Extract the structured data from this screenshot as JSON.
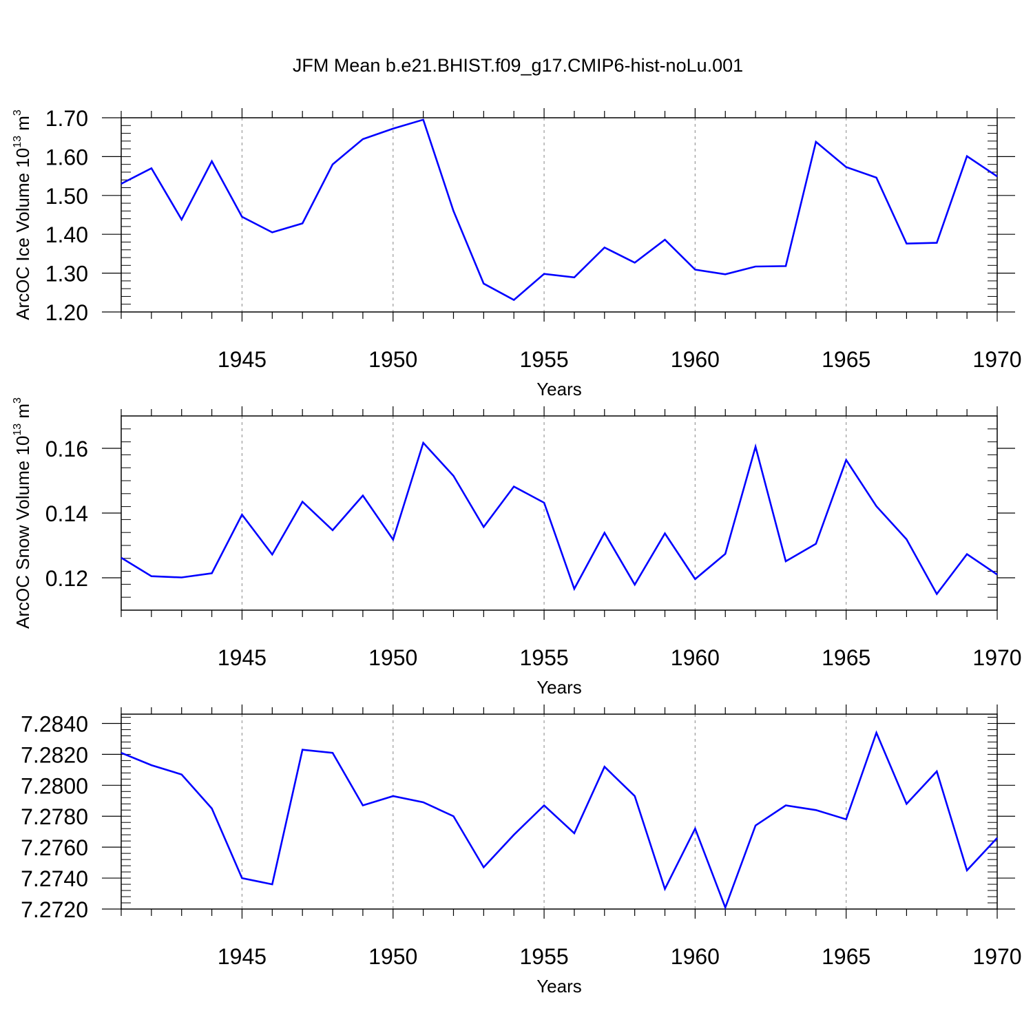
{
  "title": "JFM Mean b.e21.BHIST.f09_g17.CMIP6-hist-noLu.001",
  "colors": {
    "line": "#0000ff",
    "axis": "#000000",
    "grid": "#999999"
  },
  "chart_data": [
    {
      "type": "line",
      "title": "JFM Mean b.e21.BHIST.f09_g17.CMIP6-hist-noLu.001",
      "xlabel": "Years",
      "ylabel": "ArcOC Ice Volume 10^13 m^3",
      "ylabel_main": "ArcOC Ice Volume 10",
      "ylabel_exp": "13",
      "ylabel_unit": " m",
      "ylabel_unit_exp": "3",
      "xlim": [
        1941,
        1970
      ],
      "ylim": [
        1.2,
        1.7
      ],
      "yticks": [
        1.2,
        1.3,
        1.4,
        1.5,
        1.6,
        1.7
      ],
      "ytick_labels": [
        "1.20",
        "1.30",
        "1.40",
        "1.50",
        "1.60",
        "1.70"
      ],
      "xticks": [
        1945,
        1950,
        1955,
        1960,
        1965,
        1970
      ],
      "xtick_labels": [
        "1945",
        "1950",
        "1955",
        "1960",
        "1965",
        "1970"
      ],
      "x": [
        1941,
        1942,
        1943,
        1944,
        1945,
        1946,
        1947,
        1948,
        1949,
        1950,
        1951,
        1952,
        1953,
        1954,
        1955,
        1956,
        1957,
        1958,
        1959,
        1960,
        1961,
        1962,
        1963,
        1964,
        1965,
        1966,
        1967,
        1968,
        1969,
        1970
      ],
      "values": [
        1.53,
        1.57,
        1.438,
        1.588,
        1.445,
        1.405,
        1.428,
        1.58,
        1.645,
        1.672,
        1.695,
        1.46,
        1.273,
        1.231,
        1.298,
        1.289,
        1.366,
        1.327,
        1.386,
        1.309,
        1.297,
        1.317,
        1.318,
        1.638,
        1.573,
        1.546,
        1.376,
        1.378,
        1.601,
        1.549
      ]
    },
    {
      "type": "line",
      "xlabel": "Years",
      "ylabel": "ArcOC Snow Volume 10^13 m^3",
      "ylabel_main": "ArcOC Snow Volume 10",
      "ylabel_exp": "13",
      "ylabel_unit": " m",
      "ylabel_unit_exp": "3",
      "xlim": [
        1941,
        1970
      ],
      "ylim": [
        0.11,
        0.17
      ],
      "yticks": [
        0.12,
        0.14,
        0.16
      ],
      "ytick_labels": [
        "0.12",
        "0.14",
        "0.16"
      ],
      "xticks": [
        1945,
        1950,
        1955,
        1960,
        1965,
        1970
      ],
      "xtick_labels": [
        "1945",
        "1950",
        "1955",
        "1960",
        "1965",
        "1970"
      ],
      "x": [
        1941,
        1942,
        1943,
        1944,
        1945,
        1946,
        1947,
        1948,
        1949,
        1950,
        1951,
        1952,
        1953,
        1954,
        1955,
        1956,
        1957,
        1958,
        1959,
        1960,
        1961,
        1962,
        1963,
        1964,
        1965,
        1966,
        1967,
        1968,
        1969,
        1970
      ],
      "values": [
        0.1262,
        0.1205,
        0.1201,
        0.1214,
        0.1395,
        0.1272,
        0.1435,
        0.1347,
        0.1454,
        0.1318,
        0.1617,
        0.1515,
        0.1357,
        0.1482,
        0.1432,
        0.1166,
        0.1339,
        0.1179,
        0.1337,
        0.1196,
        0.1274,
        0.1605,
        0.1251,
        0.1305,
        0.1564,
        0.1421,
        0.1319,
        0.115,
        0.1273,
        0.121
      ]
    },
    {
      "type": "line",
      "xlabel": "Years",
      "ylabel": "",
      "xlim": [
        1941,
        1970
      ],
      "ylim": [
        7.272,
        7.2846
      ],
      "yticks": [
        7.272,
        7.274,
        7.276,
        7.278,
        7.28,
        7.282,
        7.284
      ],
      "ytick_labels": [
        "7.2720",
        "7.2740",
        "7.2760",
        "7.2780",
        "7.2800",
        "7.2820",
        "7.2840"
      ],
      "xticks": [
        1945,
        1950,
        1955,
        1960,
        1965,
        1970
      ],
      "xtick_labels": [
        "1945",
        "1950",
        "1955",
        "1960",
        "1965",
        "1970"
      ],
      "x": [
        1941,
        1942,
        1943,
        1944,
        1945,
        1946,
        1947,
        1948,
        1949,
        1950,
        1951,
        1952,
        1953,
        1954,
        1955,
        1956,
        1957,
        1958,
        1959,
        1960,
        1961,
        1962,
        1963,
        1964,
        1965,
        1966,
        1967,
        1968,
        1969,
        1970
      ],
      "values": [
        7.2821,
        7.2813,
        7.2807,
        7.2785,
        7.274,
        7.2736,
        7.2823,
        7.2821,
        7.2787,
        7.2793,
        7.2789,
        7.278,
        7.2747,
        7.2768,
        7.2787,
        7.2769,
        7.2812,
        7.2793,
        7.2733,
        7.2772,
        7.2721,
        7.2774,
        7.2787,
        7.2784,
        7.2778,
        7.2834,
        7.2788,
        7.2809,
        7.2745,
        7.2766
      ]
    }
  ]
}
